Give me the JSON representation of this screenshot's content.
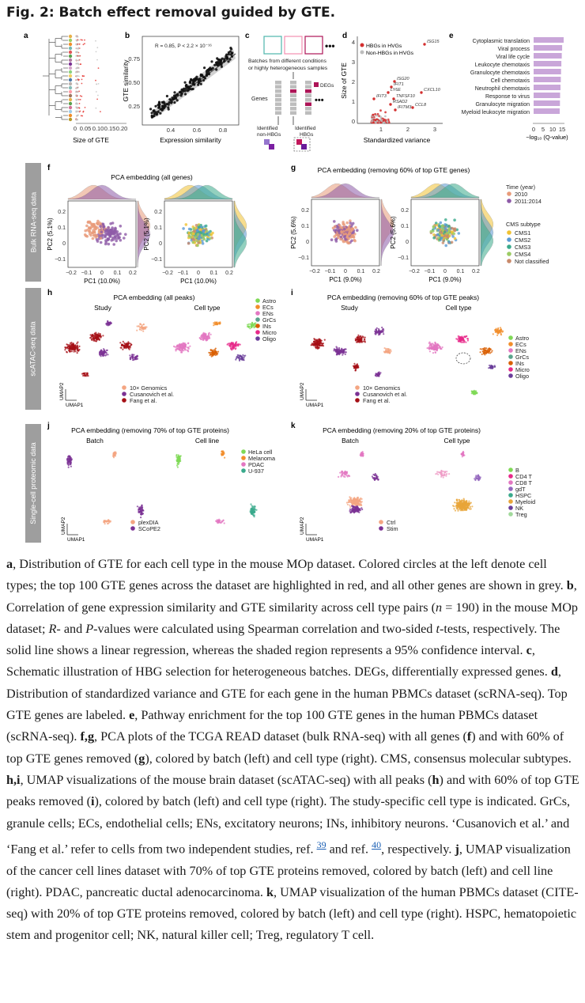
{
  "figure": {
    "title": "Fig. 2: Batch effect removal guided by GTE.",
    "sidebars": [
      "Bulk RNA-seq data",
      "scATAC-seq data",
      "Single-cell proteomic data"
    ],
    "panels": {
      "a": {
        "letter": "a",
        "xlabel": "Size of GTE",
        "ticks": [
          "0",
          "0.05",
          "0.10",
          "0.15",
          "0.20"
        ]
      },
      "b": {
        "letter": "b",
        "xlabel": "Expression similarity",
        "ylabel": "GTE similarity",
        "annotation": "R = 0.85, P < 2.2 × 10⁻¹⁶",
        "xticks": [
          "0.4",
          "0.6",
          "0.8"
        ],
        "yticks": [
          "0.25",
          "0.50",
          "0.75"
        ]
      },
      "c": {
        "letter": "c",
        "text1": "Batches from different conditions",
        "text2": "or highly heterogeneous samples",
        "genes": "Genes",
        "degs": "DEGs",
        "non_hbgs": "Identified non-HBGs",
        "hbgs": "Identified HBGs"
      },
      "d": {
        "letter": "d",
        "xlabel": "Standardized variance",
        "ylabel": "Size of GTE",
        "legend": [
          "HBGs in HVGs",
          "Non-HBGs in HVGs"
        ],
        "genes": [
          "ISG15",
          "ISG20",
          "IFIT1",
          "LY6E",
          "TNFSF10",
          "CXCL10",
          "IFIT3",
          "RSAD2",
          "IFITM3",
          "CCL8"
        ],
        "xticks": [
          "1",
          "2",
          "3"
        ],
        "yticks": [
          "0",
          "1",
          "2",
          "3",
          "4"
        ]
      },
      "e": {
        "letter": "e",
        "pathways": [
          "Cytoplasmic translation",
          "Viral process",
          "Viral life cycle",
          "Leukocyte chemotaxis",
          "Granulocyte chemotaxis",
          "Cell chemotaxis",
          "Neutrophil chemotaxis",
          "Response to virus",
          "Granulocyte migration",
          "Myeloid leukocyte migration"
        ],
        "xticks": [
          "0",
          "5",
          "10",
          "15"
        ],
        "xlabel": "−log₁₀ (Q-value)"
      },
      "f": {
        "letter": "f",
        "title": "PCA embedding (all genes)",
        "xlabel": "PC1 (10.0%)",
        "ylabel": "PC2 (5.1%)"
      },
      "g": {
        "letter": "g",
        "title": "PCA embedding (removing 60% of top GTE genes)",
        "xlabel": "PC1 (9.0%)",
        "ylabel": "PC2 (5.6%)",
        "legend_time_title": "Time (year)",
        "legend_time": [
          "2010",
          "2011:2014"
        ],
        "legend_cms_title": "CMS subtype",
        "legend_cms": [
          "CMS1",
          "CMS2",
          "CMS3",
          "CMS4",
          "Not classified"
        ]
      },
      "h": {
        "letter": "h",
        "title": "PCA embedding (all peaks)",
        "sub_left": "Study",
        "sub_right": "Cell type",
        "cell_types": [
          "Astro",
          "ECs",
          "ENs",
          "GrCs",
          "INs",
          "Micro",
          "Oligo"
        ],
        "studies": [
          "10× Genomics",
          "Cusanovich et al.",
          "Fang et al."
        ]
      },
      "i": {
        "letter": "i",
        "title": "PCA embedding (removing 60% of top GTE peaks)",
        "sub_left": "Study",
        "sub_right": "Cell type"
      },
      "j": {
        "letter": "j",
        "title": "PCA embedding (removing 70% of top GTE proteins)",
        "sub_left": "Batch",
        "sub_right": "Cell line",
        "cell_lines": [
          "HeLa cell",
          "Melanoma",
          "PDAC",
          "U-937"
        ],
        "batches": [
          "plexDIA",
          "SCoPE2"
        ]
      },
      "k": {
        "letter": "k",
        "title": "PCA embedding (removing 20% of top GTE proteins)",
        "sub_left": "Batch",
        "sub_right": "Cell type",
        "cell_types": [
          "B",
          "CD4 T",
          "CD8 T",
          "gdT",
          "HSPC",
          "Myeloid",
          "NK",
          "Treg"
        ],
        "batches": [
          "Ctrl",
          "Stim"
        ]
      },
      "umap1": "UMAP1",
      "umap2": "UMAP2"
    }
  },
  "caption": {
    "a_label": "a",
    "a_text": ", Distribution of GTE for each cell type in the mouse MOp dataset. Colored circles at the left denote cell types; the top 100 GTE genes across the dataset are highlighted in red, and all other genes are shown in grey. ",
    "b_label": "b",
    "b_text1": ", Correlation of gene expression similarity and GTE similarity across cell type pairs (",
    "b_n": "n",
    "b_text2": " = 190) in the mouse MOp dataset; ",
    "b_R": "R",
    "b_text3": "- and ",
    "b_P": "P",
    "b_text4": "-values were calculated using Spearman correlation and two-sided ",
    "b_t": "t",
    "b_text5": "-tests, respectively. The solid line shows a linear regression, whereas the shaded region represents a 95% confidence interval. ",
    "c_label": "c",
    "c_text": ", Schematic illustration of HBG selection for heterogeneous batches. DEGs, differentially expressed genes. ",
    "d_label": "d",
    "d_text": ", Distribution of standardized variance and GTE for each gene in the human PBMCs dataset (scRNA-seq). Top GTE genes are labeled. ",
    "e_label": "e",
    "e_text": ", Pathway enrichment for the top 100 GTE genes in the human PBMCs dataset (scRNA-seq). ",
    "fg_label": "f,g",
    "fg_text1": ", PCA plots of the TCGA READ dataset (bulk RNA-seq) with all genes (",
    "f_ref": "f",
    "fg_text2": ") and with 60% of top GTE genes removed (",
    "g_ref": "g",
    "fg_text3": "), colored by batch (left) and cell type (right). CMS, consensus molecular subtypes. ",
    "hi_label": "h,i",
    "hi_text1": ", UMAP visualizations of the mouse brain dataset (scATAC-seq) with all peaks (",
    "h_ref": "h",
    "hi_text2": ") and with 60% of top GTE peaks removed (",
    "i_ref": "i",
    "hi_text3": "), colored by batch (left) and cell type (right). The study-specific cell type is indicated. GrCs, granule cells; ECs, endothelial cells; ENs, excitatory neurons; INs, inhibitory neurons. ‘Cusanovich et al.’ and ‘Fang et al.’ refer to cells from two independent studies, ref. ",
    "ref39": "39",
    "hi_text4": " and ref. ",
    "ref40": "40",
    "hi_text5": ", respectively. ",
    "j_label": "j",
    "j_text": ", UMAP visualization of the cancer cell lines dataset with 70% of top GTE proteins removed, colored by batch (left) and cell line (right). PDAC, pancreatic ductal adenocarcinoma. ",
    "k_label": "k",
    "k_text": ", UMAP visualization of the human PBMCs dataset (CITE-seq) with 20% of top GTE proteins removed, colored by batch (left) and cell type (right). HSPC, hematopoietic stem and progenitor cell; NK, natural killer cell; Treg, regulatory T cell."
  }
}
